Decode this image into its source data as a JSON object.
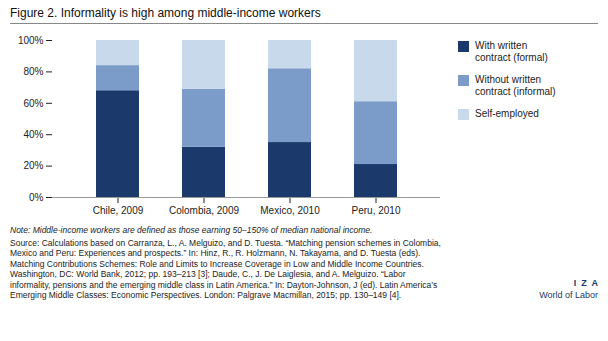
{
  "chart_data": {
    "type": "bar",
    "stacked": true,
    "title": "Figure 2. Informality is high among middle-income workers",
    "categories": [
      "Chile, 2009",
      "Colombia, 2009",
      "Mexico, 2010",
      "Peru, 2010"
    ],
    "series": [
      {
        "name": "With written\ncontract (formal)",
        "color": "#1B3A6B",
        "values": [
          68,
          32,
          35,
          21
        ]
      },
      {
        "name": "Without written\ncontract (informal)",
        "color": "#7B9CC8",
        "values": [
          16,
          37,
          47,
          40
        ]
      },
      {
        "name": "Self-employed",
        "color": "#C8D9EC",
        "values": [
          16,
          31,
          18,
          39
        ]
      }
    ],
    "ylim": [
      0,
      100
    ],
    "yticks": [
      {
        "value": 0,
        "label": "0%"
      },
      {
        "value": 20,
        "label": "20%"
      },
      {
        "value": 40,
        "label": "40%"
      },
      {
        "value": 60,
        "label": "60%"
      },
      {
        "value": 80,
        "label": "80%"
      },
      {
        "value": 100,
        "label": "100%"
      }
    ],
    "grid": false,
    "legend": "right",
    "note": "Note: Middle-income workers are defined as those earning 50–150% of median national income.",
    "source": [
      "Source: Calculations based on Carranza, L., A. Melguizo, and D. Tuesta. “Matching pension schemes in Colombia,",
      "Mexico and Peru: Experiences and prospects.” In: Hinz, R., R. Holzmann, N. Takayama, and D. Tuesta (eds).",
      "Matching Contributions Schemes: Role and Limits to Increase Coverage in Low and Middle Income Countries.",
      "Washington, DC: World Bank, 2012; pp. 193–213 [3]; Daude, C., J. De Laiglesia, and A. Melguizo. “Labor",
      "informality, pensions and the emerging middle class in Latin America.” In: Dayton-Johnson, J (ed). Latin America’s",
      "Emerging Middle Classes: Economic Perspectives. London: Palgrave Macmillan, 2015; pp. 130–149 [4]."
    ],
    "annotations": [
      "I  Z  A",
      "World of Labor"
    ]
  }
}
